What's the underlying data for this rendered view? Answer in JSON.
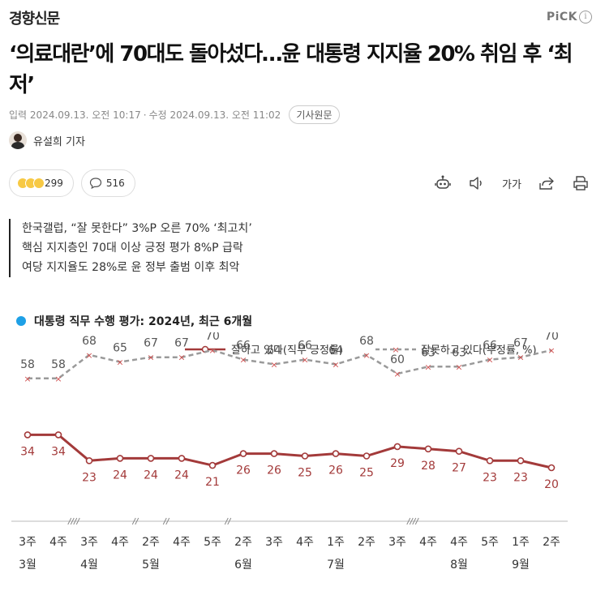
{
  "press": {
    "name": "경향신문"
  },
  "pick": {
    "label": "PiCK",
    "info_icon": "i"
  },
  "headline": "‘의료대란’에 70대도 돌아섰다…윤 대통령 지지율 20% 취임 후 ‘최저’",
  "meta": {
    "input_label": "입력",
    "input_time": "2024.09.13. 오전 10:17",
    "separator": "·",
    "edit_label": "수정",
    "edit_time": "2024.09.13. 오전 11:02",
    "original_button": "기사원문"
  },
  "reporter": {
    "name": "유설희 기자"
  },
  "reactions": {
    "count": "299",
    "comments": "516"
  },
  "toolbar": {
    "font_label": "가가",
    "icons": [
      "robot-icon",
      "speaker-icon",
      "font-size-icon",
      "share-icon",
      "print-icon"
    ]
  },
  "summary": [
    "한국갤럽, “잘 못한다” 3%P 오른 70% ‘최고치’",
    "핵심 지지층인 70대 이상 긍정 평가 8%P 급락",
    "여당 지지율도 28%로 윤 정부 출범 이후 최악"
  ],
  "chart_data": {
    "type": "line",
    "title": "대통령 직무 수행 평가: 2024년, 최근 6개월",
    "categories": [
      "3주",
      "4주",
      "3주",
      "4주",
      "2주",
      "4주",
      "5주",
      "2주",
      "3주",
      "4주",
      "1주",
      "2주",
      "3주",
      "4주",
      "4주",
      "5주",
      "1주",
      "2주"
    ],
    "months": [
      {
        "label": "3월",
        "index": 0
      },
      {
        "label": "4월",
        "index": 2
      },
      {
        "label": "5월",
        "index": 4
      },
      {
        "label": "6월",
        "index": 7
      },
      {
        "label": "7월",
        "index": 10
      },
      {
        "label": "8월",
        "index": 14
      },
      {
        "label": "9월",
        "index": 16
      }
    ],
    "breaks_after": [
      1,
      3,
      4,
      6,
      12
    ],
    "series": [
      {
        "name": "잘하고 있다(직무 긍정률)",
        "color": "#a33a3a",
        "style": "solid",
        "marker": "circle",
        "values": [
          34,
          34,
          23,
          24,
          24,
          24,
          21,
          26,
          26,
          25,
          26,
          25,
          29,
          28,
          27,
          23,
          23,
          20
        ]
      },
      {
        "name": "잘못하고 있다(부정률, %)",
        "color": "#9a9a9a",
        "style": "dashed",
        "marker": "x",
        "values": [
          58,
          58,
          68,
          65,
          67,
          67,
          70,
          66,
          64,
          66,
          64,
          68,
          60,
          63,
          63,
          66,
          67,
          70
        ]
      }
    ],
    "legend": "top-right",
    "grid": false
  }
}
